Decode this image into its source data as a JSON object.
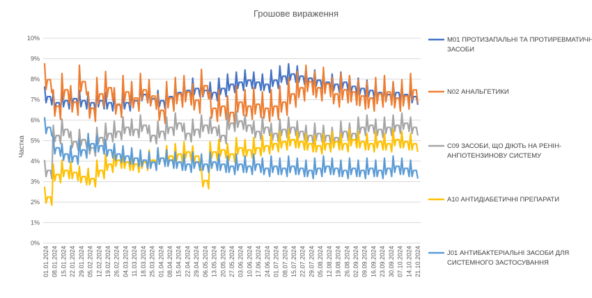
{
  "chart_data": {
    "type": "line",
    "title": "Грошове вираження",
    "ylabel": "Частка",
    "xlabel": "",
    "ylim": [
      0,
      10
    ],
    "grid": true,
    "legend_position": "right",
    "y_ticks": [
      "0%",
      "1%",
      "2%",
      "3%",
      "4%",
      "5%",
      "6%",
      "7%",
      "8%",
      "9%",
      "10%"
    ],
    "x_tick_labels": [
      "01.01.2024",
      "08.01.2024",
      "15.01.2024",
      "22.01.2024",
      "29.01.2024",
      "05.02.2024",
      "12.02.2024",
      "19.02.2024",
      "26.02.2024",
      "04.03.2024",
      "11.03.2024",
      "18.03.2024",
      "25.03.2024",
      "01.04.2024",
      "08.04.2024",
      "15.04.2024",
      "22.04.2024",
      "29.04.2024",
      "06.05.2024",
      "13.05.2024",
      "20.05.2024",
      "27.05.2024",
      "03.06.2024",
      "10.06.2024",
      "17.06.2024",
      "24.06.2024",
      "01.07.2024",
      "08.07.2024",
      "15.07.2024",
      "22.07.2024",
      "29.07.2024",
      "05.08.2024",
      "12.08.2024",
      "19.08.2024",
      "26.08.2024",
      "02.09.2024",
      "09.09.2024",
      "16.09.2024",
      "23.09.2024",
      "30.09.2024",
      "07.10.2024",
      "14.10.2024",
      "21.10.2024"
    ],
    "series": [
      {
        "name": "M01 ПРОТИЗАПАЛЬНІ ТА ПРОТИРЕВМАТИЧНІ ЗАСОБИ",
        "color": "#4472c4",
        "values": [
          7.1,
          6.8,
          6.9,
          7.0,
          6.9,
          6.8,
          6.9,
          6.8,
          6.7,
          6.8,
          6.9,
          7.2,
          7.0,
          6.9,
          7.1,
          7.3,
          7.4,
          7.5,
          7.4,
          7.3,
          7.5,
          7.7,
          7.8,
          7.9,
          7.8,
          7.7,
          7.9,
          8.1,
          8.2,
          8.1,
          8.0,
          7.9,
          7.8,
          7.7,
          7.8,
          7.6,
          7.5,
          7.4,
          7.3,
          7.2,
          7.3,
          7.2,
          7.1
        ]
      },
      {
        "name": "N02 АНАЛЬГЕТИКИ",
        "color": "#ed7d31",
        "values": [
          7.9,
          6.6,
          7.4,
          6.8,
          7.8,
          6.5,
          7.2,
          7.5,
          6.7,
          7.3,
          7.0,
          7.4,
          7.1,
          6.4,
          7.0,
          7.2,
          7.3,
          6.9,
          7.6,
          6.5,
          6.6,
          6.3,
          6.8,
          6.6,
          6.7,
          6.5,
          6.6,
          6.8,
          7.2,
          7.5,
          7.8,
          7.5,
          7.7,
          7.2,
          7.4,
          7.3,
          7.1,
          7.0,
          7.2,
          7.3,
          7.0,
          7.1,
          7.4
        ]
      },
      {
        "name": "C09 ЗАСОБИ, ЩО ДІЮТЬ НА РЕНІН-АНГІОТЕНЗИНОВУ СИСТЕМУ",
        "color": "#a5a5a5",
        "values": [
          3.5,
          5.2,
          5.5,
          4.9,
          5.0,
          4.6,
          5.1,
          5.3,
          5.4,
          5.6,
          5.5,
          5.7,
          5.2,
          5.4,
          5.6,
          5.8,
          5.3,
          5.5,
          5.7,
          5.6,
          5.2,
          5.8,
          5.9,
          5.7,
          5.4,
          5.6,
          5.3,
          5.5,
          5.6,
          5.4,
          5.2,
          5.3,
          5.2,
          5.1,
          5.4,
          5.3,
          5.6,
          5.7,
          5.5,
          5.6,
          5.7,
          5.8,
          5.6
        ]
      },
      {
        "name": "A10 АНТИДІАБЕТИЧНІ ПРЕПАРАТИ",
        "color": "#ffc000",
        "values": [
          2.2,
          3.3,
          3.5,
          3.4,
          3.2,
          3.1,
          3.5,
          3.8,
          4.0,
          3.9,
          3.8,
          3.9,
          4.0,
          4.1,
          4.2,
          4.3,
          4.4,
          4.2,
          3.0,
          4.4,
          4.5,
          4.3,
          4.6,
          4.5,
          4.6,
          4.7,
          4.8,
          4.9,
          5.0,
          4.9,
          4.8,
          4.7,
          4.8,
          4.9,
          4.8,
          5.0,
          4.9,
          4.8,
          4.9,
          4.8,
          5.0,
          4.9,
          4.8
        ]
      },
      {
        "name": "J01 АНТИБАКТЕРІАЛЬНІ ЗАСОБИ ДЛЯ СИСТЕМНОГО ЗАСТОСУВАННЯ",
        "color": "#5b9bd5",
        "values": [
          5.6,
          4.6,
          4.3,
          4.2,
          4.5,
          4.8,
          4.7,
          4.5,
          4.3,
          4.2,
          4.1,
          4.0,
          3.9,
          4.1,
          4.0,
          3.9,
          3.8,
          3.9,
          3.8,
          3.9,
          3.8,
          3.7,
          3.8,
          3.7,
          3.8,
          3.6,
          3.7,
          3.6,
          3.7,
          3.6,
          3.5,
          3.6,
          3.7,
          3.6,
          3.5,
          3.6,
          3.5,
          3.6,
          3.5,
          3.6,
          3.7,
          3.6,
          3.5
        ]
      }
    ],
    "legend": [
      {
        "lines": [
          "M01 ПРОТИЗАПАЛЬНІ ТА ПРОТИРЕВМАТИЧНІ",
          "ЗАСОБИ"
        ],
        "color": "#4472c4"
      },
      {
        "lines": [
          "N02 АНАЛЬГЕТИКИ"
        ],
        "color": "#ed7d31"
      },
      {
        "lines": [
          "C09 ЗАСОБИ, ЩО ДІЮТЬ НА РЕНІН-",
          "АНГІОТЕНЗИНОВУ СИСТЕМУ"
        ],
        "color": "#a5a5a5"
      },
      {
        "lines": [
          "A10 АНТИДІАБЕТИЧНІ ПРЕПАРАТИ"
        ],
        "color": "#ffc000"
      },
      {
        "lines": [
          "J01 АНТИБАКТЕРІАЛЬНІ ЗАСОБИ ДЛЯ",
          "СИСТЕМНОГО ЗАСТОСУВАННЯ"
        ],
        "color": "#5b9bd5"
      }
    ]
  }
}
